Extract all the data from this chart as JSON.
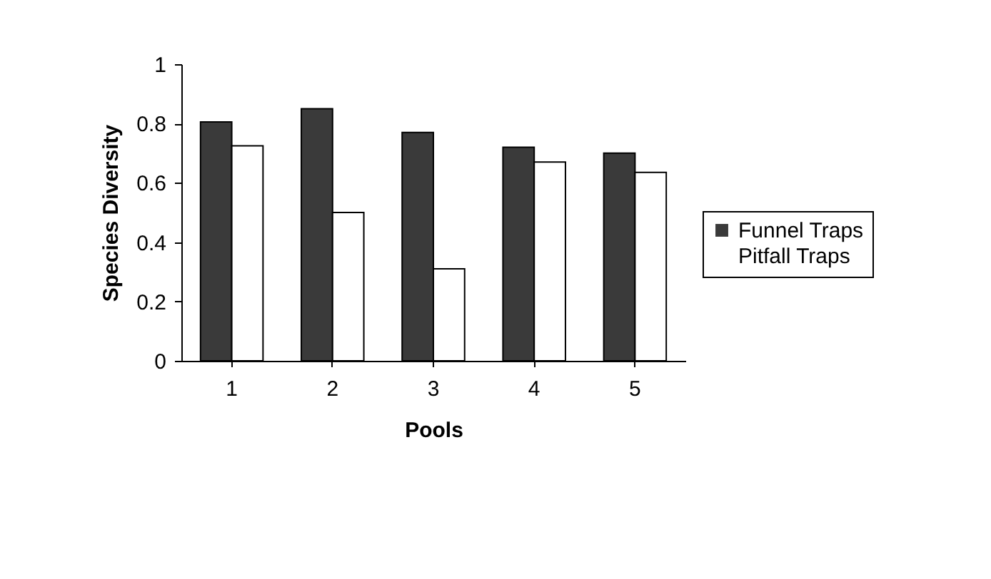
{
  "chart_data": {
    "type": "bar",
    "xlabel": "Pools",
    "ylabel": "Species Diversity",
    "categories": [
      "1",
      "2",
      "3",
      "4",
      "5"
    ],
    "series": [
      {
        "name": "Funnel Traps",
        "color": "#3a3a3a",
        "values": [
          0.805,
          0.85,
          0.77,
          0.72,
          0.7
        ]
      },
      {
        "name": "Pitfall Traps",
        "color": "#ffffff",
        "values": [
          0.725,
          0.5,
          0.31,
          0.67,
          0.635
        ]
      }
    ],
    "ylim": [
      0,
      1
    ],
    "yticks": [
      0,
      0.2,
      0.4,
      0.6,
      0.8,
      1
    ],
    "grid": false,
    "legend": "right"
  }
}
